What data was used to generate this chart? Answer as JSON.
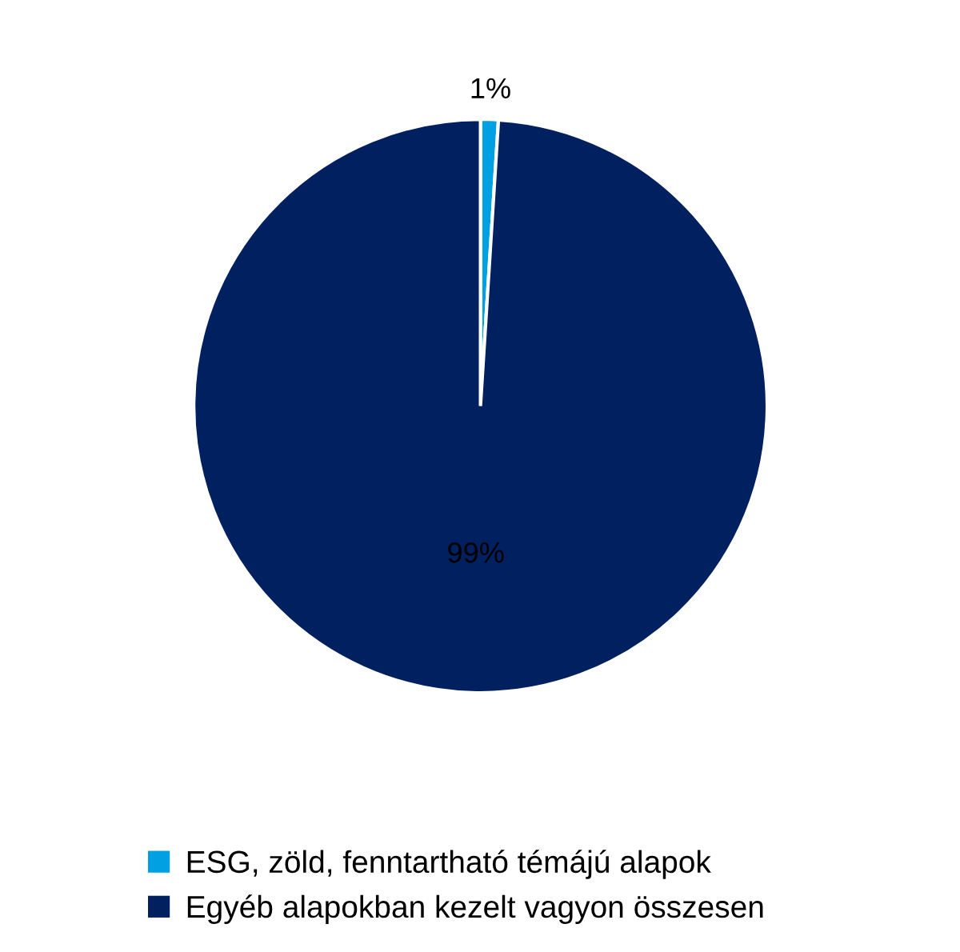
{
  "chart_data": {
    "type": "pie",
    "categories": [
      "ESG, zöld, fenntartható témájú alapok",
      "Egyéb alapokban kezelt vagyon összesen"
    ],
    "values": [
      1,
      99
    ],
    "colors": [
      "#00a0e3",
      "#002060"
    ],
    "value_labels": [
      "1%",
      "99%"
    ],
    "legend": "bottom"
  }
}
